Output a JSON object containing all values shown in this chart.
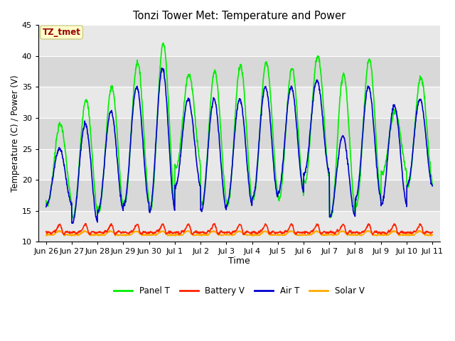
{
  "title": "Tonzi Tower Met: Temperature and Power",
  "xlabel": "Time",
  "ylabel": "Temperature (C) / Power (V)",
  "ylim": [
    10,
    45
  ],
  "background_color": "#ffffff",
  "plot_bg_color": "#e8e8e8",
  "grid_color": "#ffffff",
  "annotation_text": "TZ_tmet",
  "annotation_bg": "#ffffcc",
  "annotation_border": "#cccc88",
  "annotation_text_color": "#990000",
  "legend_items": [
    "Panel T",
    "Battery V",
    "Air T",
    "Solar V"
  ],
  "legend_colors": [
    "#00ff00",
    "#ff0000",
    "#0000cc",
    "#ff8800"
  ],
  "panel_color": "#00ee00",
  "battery_color": "#ff2200",
  "air_color": "#0000cc",
  "solar_color": "#ffaa00",
  "tick_labels": [
    "Jun 26",
    "Jun 27",
    "Jun 28",
    "Jun 29",
    "Jun 30",
    "Jul 1",
    "Jul 2",
    "Jul 3",
    "Jul 4",
    "Jul 5",
    "Jul 6",
    "Jul 7",
    "Jul 8",
    "Jul 9",
    "Jul 10",
    "Jul 11"
  ],
  "tick_positions": [
    0,
    1,
    2,
    3,
    4,
    5,
    6,
    7,
    8,
    9,
    10,
    11,
    12,
    13,
    14,
    15
  ],
  "panel_peaks": [
    29,
    33,
    35,
    39,
    42,
    37,
    37.5,
    38.5,
    39,
    38,
    40,
    37,
    39.5,
    31,
    36.5
  ],
  "panel_troughs": [
    16,
    14,
    15,
    16,
    15,
    22,
    16,
    16,
    17,
    17,
    19.5,
    14,
    16,
    21,
    19
  ],
  "air_peaks": [
    25,
    29,
    31,
    35,
    38,
    33,
    33,
    33,
    35,
    35,
    36,
    27,
    35,
    32,
    33
  ],
  "air_troughs": [
    16,
    13,
    15,
    16,
    15,
    19,
    15,
    16,
    17,
    18,
    21,
    14,
    17,
    16,
    19
  ]
}
